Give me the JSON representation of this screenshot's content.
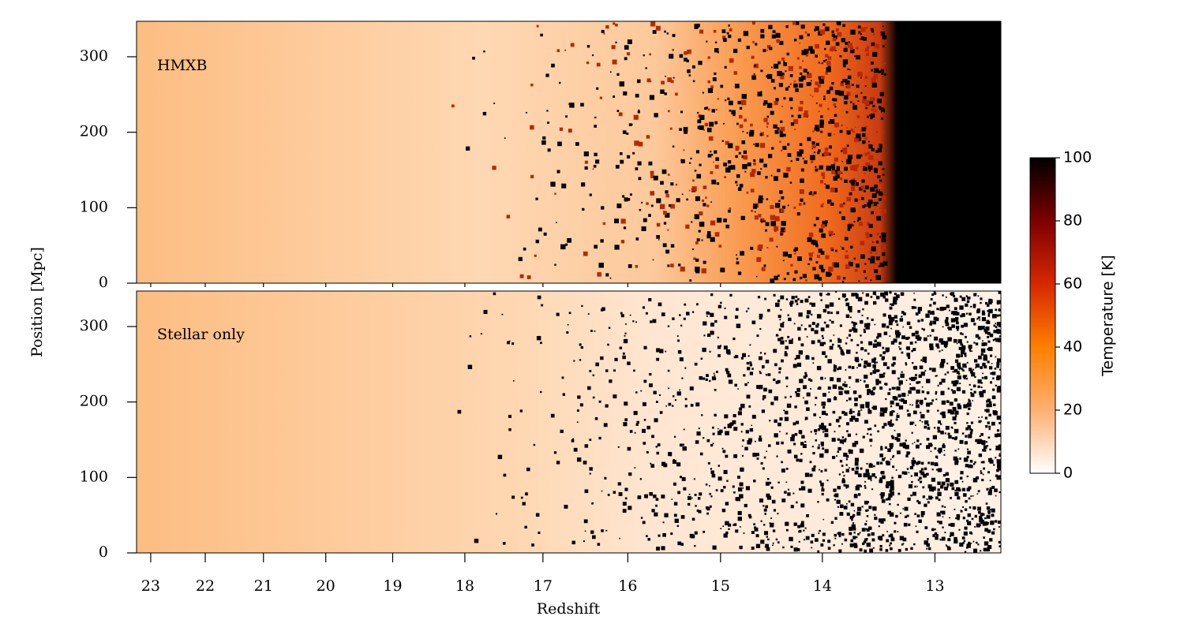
{
  "chart_data": [
    {
      "type": "image",
      "annotation": "HMXB",
      "ylabel": "Position [Mpc]",
      "ylim": [
        0,
        347
      ],
      "yticks": [
        0,
        100,
        200,
        300
      ]
    },
    {
      "type": "image",
      "annotation": "Stellar only",
      "xlabel": "Redshift",
      "ylim": [
        0,
        347
      ],
      "yticks": [
        0,
        100,
        200,
        300
      ],
      "xlim": [
        23.27,
        12.46
      ],
      "xticks": [
        23,
        22,
        21,
        20,
        19,
        18,
        17,
        16,
        15,
        14,
        13
      ],
      "xscale": "comoving"
    }
  ],
  "colorbar": {
    "label": "Temperature [K]",
    "lim": [
      0,
      100
    ],
    "ticks": [
      0,
      20,
      40,
      60,
      80,
      100
    ],
    "colors": [
      "#ffffff",
      "#ffb070",
      "#ff7f00",
      "#d62800",
      "#7d0000",
      "#000000"
    ]
  }
}
